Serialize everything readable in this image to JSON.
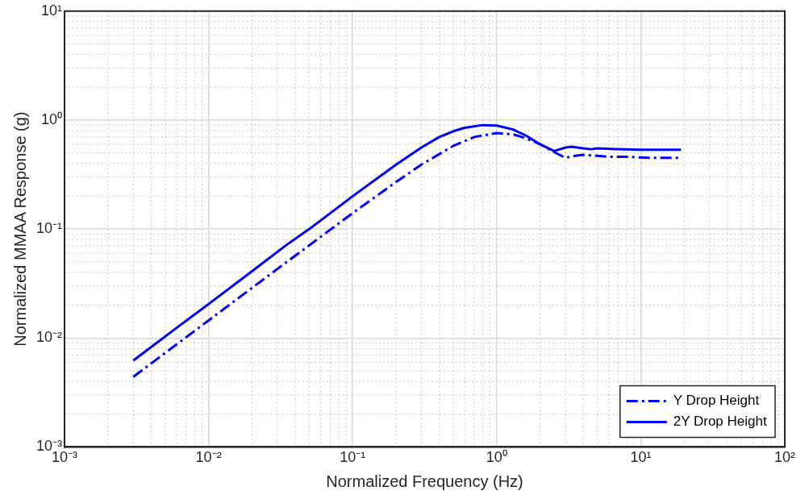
{
  "chart_data": {
    "type": "line",
    "xlabel": "Normalized Frequency (Hz)",
    "ylabel": "Normalized MMAA Response (g)",
    "log": "xy",
    "grid": true,
    "legend": "bottom right",
    "xlim": [
      0.001,
      100
    ],
    "xticks": [
      {
        "value": 0.001,
        "label": "10⁻³"
      },
      {
        "value": 0.01,
        "label": "10⁻²"
      },
      {
        "value": 0.1,
        "label": "10⁻¹"
      },
      {
        "value": 1,
        "label": "10⁰"
      },
      {
        "value": 10,
        "label": "10¹"
      },
      {
        "value": 100,
        "label": "10²"
      }
    ],
    "ylim": [
      0.001,
      10
    ],
    "yticks": [
      {
        "value": 0.001,
        "label": "10⁻³"
      },
      {
        "value": 0.01,
        "label": "10⁻²"
      },
      {
        "value": 0.1,
        "label": "10⁻¹"
      },
      {
        "value": 1,
        "label": "10⁰"
      },
      {
        "value": 10,
        "label": "10¹"
      }
    ],
    "series": [
      {
        "name": "Y Drop Height",
        "color": "#0000ff",
        "line_style": "dashed",
        "x": [
          0.003,
          0.01,
          0.03,
          0.1,
          0.2,
          0.3,
          0.5,
          0.7,
          1,
          1.3,
          1.6,
          2,
          2.5,
          3,
          3.5,
          4,
          5,
          6,
          8,
          12,
          19
        ],
        "values": [
          0.0044,
          0.0145,
          0.043,
          0.14,
          0.27,
          0.39,
          0.58,
          0.7,
          0.76,
          0.74,
          0.68,
          0.6,
          0.51,
          0.45,
          0.47,
          0.48,
          0.47,
          0.46,
          0.46,
          0.45,
          0.45
        ]
      },
      {
        "name": "2Y Drop Height",
        "color": "#0000ff",
        "line_style": "solid",
        "x": [
          0.003,
          0.006,
          0.01,
          0.02,
          0.035,
          0.05,
          0.1,
          0.2,
          0.3,
          0.4,
          0.5,
          0.6,
          0.8,
          1,
          1.3,
          1.6,
          2,
          2.5,
          3,
          3.3,
          4,
          4.5,
          5,
          7,
          10,
          19
        ],
        "values": [
          0.0062,
          0.0124,
          0.0205,
          0.041,
          0.072,
          0.1,
          0.2,
          0.39,
          0.56,
          0.7,
          0.79,
          0.85,
          0.9,
          0.89,
          0.82,
          0.72,
          0.6,
          0.52,
          0.56,
          0.57,
          0.55,
          0.54,
          0.55,
          0.54,
          0.535,
          0.535
        ]
      }
    ]
  }
}
